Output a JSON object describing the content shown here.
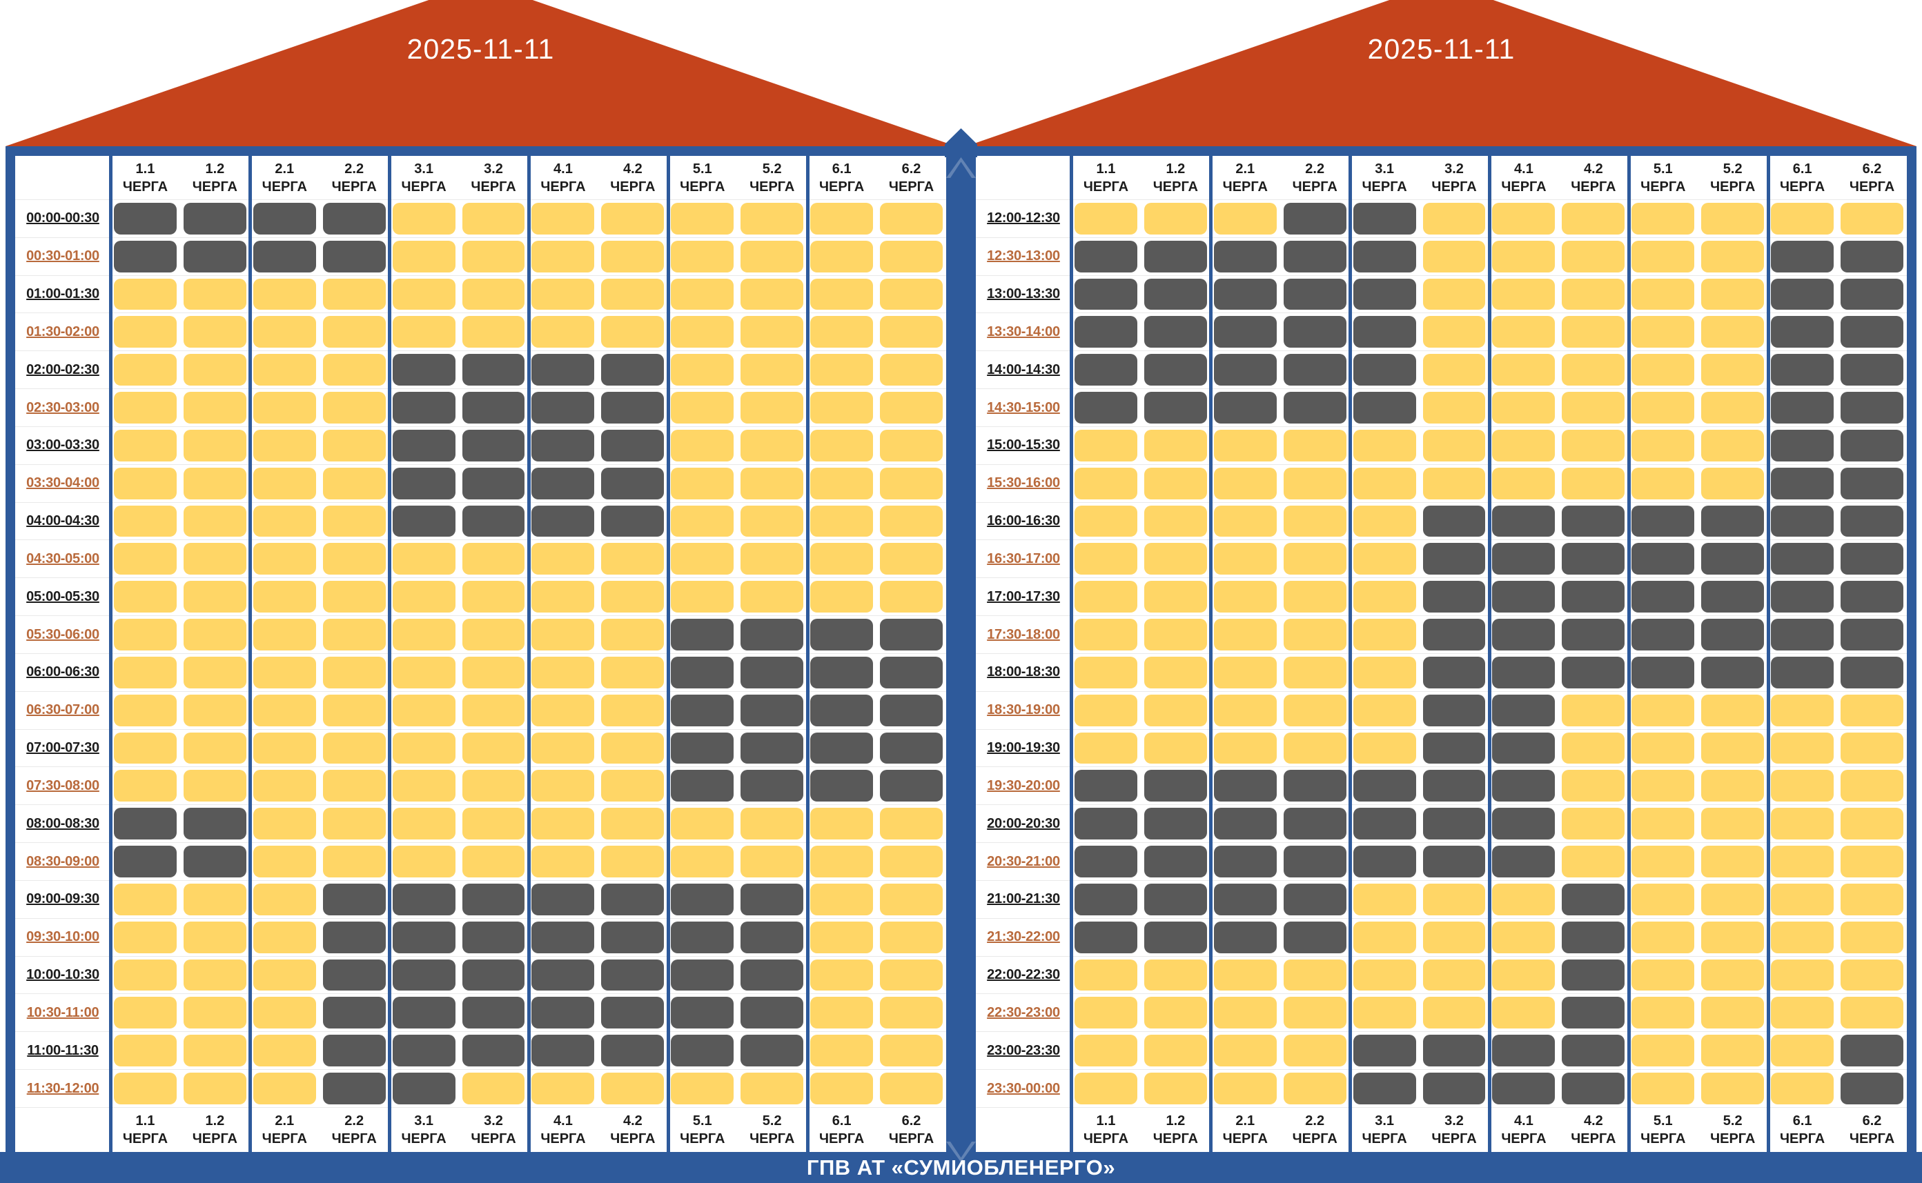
{
  "footer": {
    "title": "ГПВ АТ «СУМИОБЛЕНЕРГО»"
  },
  "queue_word": "ЧЕРГА",
  "colors": {
    "roof": "#C5431C",
    "frame_blue": "#2E5A9B",
    "cell_yellow": "#FFD666",
    "cell_dark": "#595959",
    "time_hour_text": "#1C1C1C",
    "time_half_text": "#B96A3C"
  },
  "chart_data": [
    {
      "type": "heatmap",
      "title": "2025-11-11",
      "columns": [
        "1.1",
        "1.2",
        "2.1",
        "2.2",
        "3.1",
        "3.2",
        "4.1",
        "4.2",
        "5.1",
        "5.2",
        "6.1",
        "6.2"
      ],
      "rows": [
        "00:00-00:30",
        "00:30-01:00",
        "01:00-01:30",
        "01:30-02:00",
        "02:00-02:30",
        "02:30-03:00",
        "03:00-03:30",
        "03:30-04:00",
        "04:00-04:30",
        "04:30-05:00",
        "05:00-05:30",
        "05:30-06:00",
        "06:00-06:30",
        "06:30-07:00",
        "07:00-07:30",
        "07:30-08:00",
        "08:00-08:30",
        "08:30-09:00",
        "09:00-09:30",
        "09:30-10:00",
        "10:00-10:30",
        "10:30-11:00",
        "11:00-11:30",
        "11:30-12:00"
      ],
      "palette": {
        "0": "#FFD666",
        "1": "#595959"
      },
      "values": [
        [
          1,
          1,
          1,
          1,
          0,
          0,
          0,
          0,
          0,
          0,
          0,
          0
        ],
        [
          1,
          1,
          1,
          1,
          0,
          0,
          0,
          0,
          0,
          0,
          0,
          0
        ],
        [
          0,
          0,
          0,
          0,
          0,
          0,
          0,
          0,
          0,
          0,
          0,
          0
        ],
        [
          0,
          0,
          0,
          0,
          0,
          0,
          0,
          0,
          0,
          0,
          0,
          0
        ],
        [
          0,
          0,
          0,
          0,
          1,
          1,
          1,
          1,
          0,
          0,
          0,
          0
        ],
        [
          0,
          0,
          0,
          0,
          1,
          1,
          1,
          1,
          0,
          0,
          0,
          0
        ],
        [
          0,
          0,
          0,
          0,
          1,
          1,
          1,
          1,
          0,
          0,
          0,
          0
        ],
        [
          0,
          0,
          0,
          0,
          1,
          1,
          1,
          1,
          0,
          0,
          0,
          0
        ],
        [
          0,
          0,
          0,
          0,
          1,
          1,
          1,
          1,
          0,
          0,
          0,
          0
        ],
        [
          0,
          0,
          0,
          0,
          0,
          0,
          0,
          0,
          0,
          0,
          0,
          0
        ],
        [
          0,
          0,
          0,
          0,
          0,
          0,
          0,
          0,
          0,
          0,
          0,
          0
        ],
        [
          0,
          0,
          0,
          0,
          0,
          0,
          0,
          0,
          1,
          1,
          1,
          1
        ],
        [
          0,
          0,
          0,
          0,
          0,
          0,
          0,
          0,
          1,
          1,
          1,
          1
        ],
        [
          0,
          0,
          0,
          0,
          0,
          0,
          0,
          0,
          1,
          1,
          1,
          1
        ],
        [
          0,
          0,
          0,
          0,
          0,
          0,
          0,
          0,
          1,
          1,
          1,
          1
        ],
        [
          0,
          0,
          0,
          0,
          0,
          0,
          0,
          0,
          1,
          1,
          1,
          1
        ],
        [
          1,
          1,
          0,
          0,
          0,
          0,
          0,
          0,
          0,
          0,
          0,
          0
        ],
        [
          1,
          1,
          0,
          0,
          0,
          0,
          0,
          0,
          0,
          0,
          0,
          0
        ],
        [
          0,
          0,
          0,
          1,
          1,
          1,
          1,
          1,
          1,
          1,
          0,
          0
        ],
        [
          0,
          0,
          0,
          1,
          1,
          1,
          1,
          1,
          1,
          1,
          0,
          0
        ],
        [
          0,
          0,
          0,
          1,
          1,
          1,
          1,
          1,
          1,
          1,
          0,
          0
        ],
        [
          0,
          0,
          0,
          1,
          1,
          1,
          1,
          1,
          1,
          1,
          0,
          0
        ],
        [
          0,
          0,
          0,
          1,
          1,
          1,
          1,
          1,
          1,
          1,
          0,
          0
        ],
        [
          0,
          0,
          0,
          1,
          1,
          0,
          0,
          0,
          0,
          0,
          0,
          0
        ]
      ]
    },
    {
      "type": "heatmap",
      "title": "2025-11-11",
      "columns": [
        "1.1",
        "1.2",
        "2.1",
        "2.2",
        "3.1",
        "3.2",
        "4.1",
        "4.2",
        "5.1",
        "5.2",
        "6.1",
        "6.2"
      ],
      "rows": [
        "12:00-12:30",
        "12:30-13:00",
        "13:00-13:30",
        "13:30-14:00",
        "14:00-14:30",
        "14:30-15:00",
        "15:00-15:30",
        "15:30-16:00",
        "16:00-16:30",
        "16:30-17:00",
        "17:00-17:30",
        "17:30-18:00",
        "18:00-18:30",
        "18:30-19:00",
        "19:00-19:30",
        "19:30-20:00",
        "20:00-20:30",
        "20:30-21:00",
        "21:00-21:30",
        "21:30-22:00",
        "22:00-22:30",
        "22:30-23:00",
        "23:00-23:30",
        "23:30-00:00"
      ],
      "palette": {
        "0": "#FFD666",
        "1": "#595959"
      },
      "values": [
        [
          0,
          0,
          0,
          1,
          1,
          0,
          0,
          0,
          0,
          0,
          0,
          0
        ],
        [
          1,
          1,
          1,
          1,
          1,
          0,
          0,
          0,
          0,
          0,
          1,
          1
        ],
        [
          1,
          1,
          1,
          1,
          1,
          0,
          0,
          0,
          0,
          0,
          1,
          1
        ],
        [
          1,
          1,
          1,
          1,
          1,
          0,
          0,
          0,
          0,
          0,
          1,
          1
        ],
        [
          1,
          1,
          1,
          1,
          1,
          0,
          0,
          0,
          0,
          0,
          1,
          1
        ],
        [
          1,
          1,
          1,
          1,
          1,
          0,
          0,
          0,
          0,
          0,
          1,
          1
        ],
        [
          0,
          0,
          0,
          0,
          0,
          0,
          0,
          0,
          0,
          0,
          1,
          1
        ],
        [
          0,
          0,
          0,
          0,
          0,
          0,
          0,
          0,
          0,
          0,
          1,
          1
        ],
        [
          0,
          0,
          0,
          0,
          0,
          1,
          1,
          1,
          1,
          1,
          1,
          1
        ],
        [
          0,
          0,
          0,
          0,
          0,
          1,
          1,
          1,
          1,
          1,
          1,
          1
        ],
        [
          0,
          0,
          0,
          0,
          0,
          1,
          1,
          1,
          1,
          1,
          1,
          1
        ],
        [
          0,
          0,
          0,
          0,
          0,
          1,
          1,
          1,
          1,
          1,
          1,
          1
        ],
        [
          0,
          0,
          0,
          0,
          0,
          1,
          1,
          1,
          1,
          1,
          1,
          1
        ],
        [
          0,
          0,
          0,
          0,
          0,
          1,
          1,
          0,
          0,
          0,
          0,
          0
        ],
        [
          0,
          0,
          0,
          0,
          0,
          1,
          1,
          0,
          0,
          0,
          0,
          0
        ],
        [
          1,
          1,
          1,
          1,
          1,
          1,
          1,
          0,
          0,
          0,
          0,
          0
        ],
        [
          1,
          1,
          1,
          1,
          1,
          1,
          1,
          0,
          0,
          0,
          0,
          0
        ],
        [
          1,
          1,
          1,
          1,
          1,
          1,
          1,
          0,
          0,
          0,
          0,
          0
        ],
        [
          1,
          1,
          1,
          1,
          0,
          0,
          0,
          1,
          0,
          0,
          0,
          0
        ],
        [
          1,
          1,
          1,
          1,
          0,
          0,
          0,
          1,
          0,
          0,
          0,
          0
        ],
        [
          0,
          0,
          0,
          0,
          0,
          0,
          0,
          1,
          0,
          0,
          0,
          0
        ],
        [
          0,
          0,
          0,
          0,
          0,
          0,
          0,
          1,
          0,
          0,
          0,
          0
        ],
        [
          0,
          0,
          0,
          0,
          1,
          1,
          1,
          1,
          0,
          0,
          0,
          1
        ],
        [
          0,
          0,
          0,
          0,
          1,
          1,
          1,
          1,
          0,
          0,
          0,
          1
        ]
      ]
    }
  ]
}
